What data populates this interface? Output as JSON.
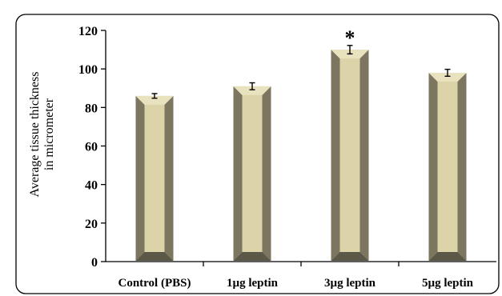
{
  "chart_data": {
    "type": "bar",
    "categories": [
      "Control (PBS)",
      "1µg leptin",
      "3µg leptin",
      "5µg leptin"
    ],
    "values": [
      86,
      91,
      110,
      98
    ],
    "errors": [
      1.2,
      1.8,
      2.2,
      1.8
    ],
    "ylabel": [
      "Average tissue thickness",
      "in micrometer"
    ],
    "xlabel": "",
    "ylim": [
      0,
      120
    ],
    "yticks": [
      0,
      20,
      40,
      60,
      80,
      100,
      120
    ],
    "grid": false,
    "legend": "none",
    "annotations": [
      {
        "category": "3µg leptin",
        "text": "*"
      }
    ],
    "colors": {
      "bar_face": "#dcd4a8",
      "bar_side": "#7c7660",
      "bar_base": "#5c5847",
      "frame": "#000000"
    }
  }
}
